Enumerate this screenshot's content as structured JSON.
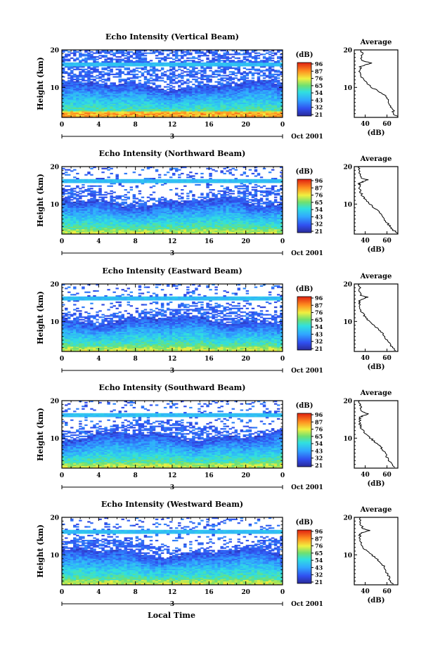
{
  "figure": {
    "date_label": "Oct 2001",
    "day_label": "3",
    "xlabel_bottom": "Local Time",
    "colorbar_label": "(dB)",
    "colorbar_ticks": [
      "96",
      "87",
      "76",
      "65",
      "54",
      "43",
      "32",
      "21"
    ]
  },
  "chart_data": [
    {
      "type": "heatmap",
      "title": "Echo Intensity (Vertical Beam)",
      "ylabel": "Height (km)",
      "x_ticks": [
        "0",
        "4",
        "8",
        "12",
        "16",
        "20",
        "0"
      ],
      "y_ticks": [
        "20",
        "10"
      ],
      "xlim": [
        0,
        24
      ],
      "ylim": [
        2,
        20
      ],
      "colorbar_range": [
        21,
        96
      ],
      "average_profile": {
        "title": "Average",
        "xlabel": "(dB)",
        "x_ticks": [
          "40",
          "60"
        ],
        "y_ticks": [
          "20",
          "10"
        ],
        "xlim": [
          30,
          70
        ],
        "ylim": [
          2,
          20
        ],
        "height": [
          20,
          19,
          18,
          17,
          16.5,
          16,
          15.5,
          15,
          14,
          13,
          12,
          11,
          10,
          9,
          8,
          7,
          6,
          5,
          4,
          3,
          2.2
        ],
        "db": [
          35,
          38,
          36,
          38,
          46,
          40,
          35,
          36,
          35,
          36,
          38,
          42,
          46,
          52,
          58,
          60,
          62,
          63,
          66,
          65,
          70
        ]
      }
    },
    {
      "type": "heatmap",
      "title": "Echo Intensity (Northward Beam)",
      "ylabel": "Height (km)",
      "x_ticks": [
        "0",
        "4",
        "8",
        "12",
        "16",
        "20",
        "0"
      ],
      "y_ticks": [
        "20",
        "10"
      ],
      "xlim": [
        0,
        24
      ],
      "ylim": [
        2,
        20
      ],
      "colorbar_range": [
        21,
        96
      ],
      "average_profile": {
        "title": "Average",
        "xlabel": "(dB)",
        "x_ticks": [
          "40",
          "60"
        ],
        "y_ticks": [
          "20",
          "10"
        ],
        "xlim": [
          30,
          70
        ],
        "ylim": [
          2,
          20
        ],
        "height": [
          20,
          19,
          18,
          17,
          16.5,
          16,
          15.5,
          15,
          14,
          13,
          12,
          11,
          10,
          9,
          8,
          7,
          6,
          5,
          4,
          3,
          2.2
        ],
        "db": [
          34,
          35,
          35,
          36,
          42,
          38,
          34,
          35,
          35,
          36,
          38,
          41,
          44,
          48,
          52,
          56,
          58,
          60,
          63,
          66,
          70
        ]
      }
    },
    {
      "type": "heatmap",
      "title": "Echo Intensity (Eastward Beam)",
      "ylabel": "Height (km)",
      "x_ticks": [
        "0",
        "4",
        "8",
        "12",
        "16",
        "20",
        "0"
      ],
      "y_ticks": [
        "20",
        "10"
      ],
      "xlim": [
        0,
        24
      ],
      "ylim": [
        2,
        20
      ],
      "colorbar_range": [
        21,
        96
      ],
      "average_profile": {
        "title": "Average",
        "xlabel": "(dB)",
        "x_ticks": [
          "40",
          "60"
        ],
        "y_ticks": [
          "20",
          "10"
        ],
        "xlim": [
          30,
          70
        ],
        "ylim": [
          2,
          20
        ],
        "height": [
          20,
          19,
          18,
          17,
          16.5,
          16,
          15.5,
          15,
          14,
          13,
          12,
          11,
          10,
          9,
          8,
          7,
          6,
          5,
          4,
          3,
          2.2
        ],
        "db": [
          34,
          35,
          35,
          36,
          42,
          38,
          34,
          35,
          35,
          36,
          38,
          41,
          44,
          48,
          52,
          56,
          58,
          60,
          63,
          65,
          68
        ]
      }
    },
    {
      "type": "heatmap",
      "title": "Echo Intensity (Southward Beam)",
      "ylabel": "Height (km)",
      "x_ticks": [
        "0",
        "4",
        "8",
        "12",
        "16",
        "20",
        "0"
      ],
      "y_ticks": [
        "20",
        "10"
      ],
      "xlim": [
        0,
        24
      ],
      "ylim": [
        2,
        20
      ],
      "colorbar_range": [
        21,
        96
      ],
      "average_profile": {
        "title": "Average",
        "xlabel": "(dB)",
        "x_ticks": [
          "40",
          "60"
        ],
        "y_ticks": [
          "20",
          "10"
        ],
        "xlim": [
          30,
          70
        ],
        "ylim": [
          2,
          20
        ],
        "height": [
          20,
          19,
          18,
          17,
          16.5,
          16,
          15.5,
          15,
          14,
          13,
          12,
          11,
          10,
          9,
          8,
          7,
          6,
          5,
          4,
          3,
          2.2
        ],
        "db": [
          35,
          35,
          36,
          37,
          43,
          38,
          35,
          35,
          35,
          36,
          38,
          41,
          45,
          49,
          53,
          56,
          58,
          60,
          62,
          64,
          67
        ]
      }
    },
    {
      "type": "heatmap",
      "title": "Echo Intensity (Westward Beam)",
      "ylabel": "Height (km)",
      "x_ticks": [
        "0",
        "4",
        "8",
        "12",
        "16",
        "20",
        "0"
      ],
      "y_ticks": [
        "20",
        "10"
      ],
      "xlim": [
        0,
        24
      ],
      "ylim": [
        2,
        20
      ],
      "colorbar_range": [
        21,
        96
      ],
      "average_profile": {
        "title": "Average",
        "xlabel": "(dB)",
        "x_ticks": [
          "40",
          "60"
        ],
        "y_ticks": [
          "20",
          "10"
        ],
        "xlim": [
          30,
          70
        ],
        "ylim": [
          2,
          20
        ],
        "height": [
          20,
          19,
          18,
          17,
          16.5,
          16,
          15.5,
          15,
          14,
          13,
          12,
          11,
          10,
          9,
          8,
          7,
          6,
          5,
          4,
          3,
          2.2
        ],
        "db": [
          35,
          35,
          36,
          38,
          44,
          38,
          35,
          35,
          35,
          36,
          38,
          42,
          46,
          50,
          54,
          57,
          59,
          60,
          62,
          63,
          66
        ]
      }
    }
  ]
}
